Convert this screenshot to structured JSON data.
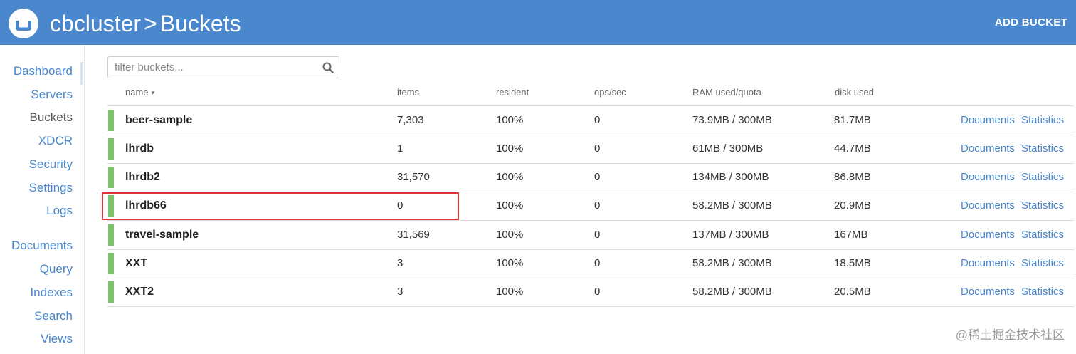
{
  "header": {
    "breadcrumb_cluster": "cbcluster",
    "breadcrumb_separator": ">",
    "breadcrumb_page": "Buckets",
    "add_bucket_label": "ADD BUCKET"
  },
  "sidebar": {
    "items": [
      {
        "label": "Dashboard"
      },
      {
        "label": "Servers"
      },
      {
        "label": "Buckets",
        "active": true
      },
      {
        "label": "XDCR"
      },
      {
        "label": "Security"
      },
      {
        "label": "Settings"
      },
      {
        "label": "Logs"
      },
      {
        "label": "Documents"
      },
      {
        "label": "Query"
      },
      {
        "label": "Indexes"
      },
      {
        "label": "Search"
      },
      {
        "label": "Views"
      }
    ]
  },
  "filter": {
    "placeholder": "filter buckets...",
    "icon": "search-icon"
  },
  "table": {
    "columns": {
      "name": "name",
      "items": "items",
      "resident": "resident",
      "ops": "ops/sec",
      "ram": "RAM used/quota",
      "disk": "disk used"
    },
    "sort_indicator": "▾",
    "rows": [
      {
        "name": "beer-sample",
        "items": "7,303",
        "resident": "100%",
        "ops": "0",
        "ram": "73.9MB / 300MB",
        "disk": "81.7MB",
        "documents": "Documents",
        "statistics": "Statistics"
      },
      {
        "name": "lhrdb",
        "items": "1",
        "resident": "100%",
        "ops": "0",
        "ram": "61MB / 300MB",
        "disk": "44.7MB",
        "documents": "Documents",
        "statistics": "Statistics"
      },
      {
        "name": "lhrdb2",
        "items": "31,570",
        "resident": "100%",
        "ops": "0",
        "ram": "134MB / 300MB",
        "disk": "86.8MB",
        "documents": "Documents",
        "statistics": "Statistics"
      },
      {
        "name": "lhrdb66",
        "items": "0",
        "resident": "100%",
        "ops": "0",
        "ram": "58.2MB / 300MB",
        "disk": "20.9MB",
        "documents": "Documents",
        "statistics": "Statistics"
      },
      {
        "name": "travel-sample",
        "items": "31,569",
        "resident": "100%",
        "ops": "0",
        "ram": "137MB / 300MB",
        "disk": "167MB",
        "documents": "Documents",
        "statistics": "Statistics"
      },
      {
        "name": "XXT",
        "items": "3",
        "resident": "100%",
        "ops": "0",
        "ram": "58.2MB / 300MB",
        "disk": "18.5MB",
        "documents": "Documents",
        "statistics": "Statistics"
      },
      {
        "name": "XXT2",
        "items": "3",
        "resident": "100%",
        "ops": "0",
        "ram": "58.2MB / 300MB",
        "disk": "20.5MB",
        "documents": "Documents",
        "statistics": "Statistics"
      }
    ]
  },
  "watermark": "@稀土掘金技术社区",
  "colors": {
    "header_bg": "#4a87cc",
    "link": "#4a87cc",
    "status_healthy": "#7cc26b",
    "highlight": "#e0333a"
  }
}
